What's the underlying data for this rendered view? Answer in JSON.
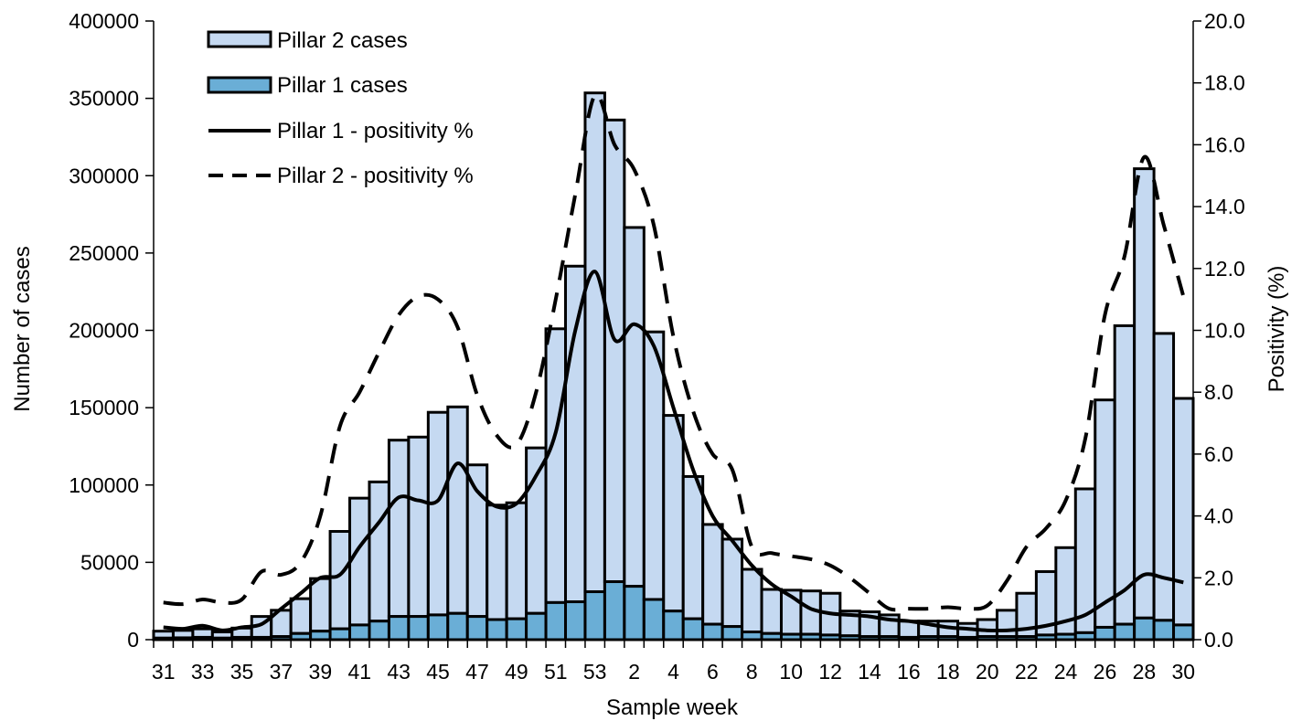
{
  "chart_data": {
    "type": "bar",
    "stacked": true,
    "title": "",
    "xlabel": "Sample week",
    "ylabel": "Number of cases",
    "y2label": "Positivity (%)",
    "ylim": [
      0,
      400000
    ],
    "y2lim": [
      0,
      20
    ],
    "yticks": [
      "0",
      "50000",
      "100000",
      "150000",
      "200000",
      "250000",
      "300000",
      "350000",
      "400000"
    ],
    "y2ticks": [
      "0.0",
      "2.0",
      "4.0",
      "6.0",
      "8.0",
      "10.0",
      "12.0",
      "14.0",
      "16.0",
      "18.0",
      "20.0"
    ],
    "legend_position": "top-left",
    "categories": [
      "31",
      "32",
      "33",
      "34",
      "35",
      "36",
      "37",
      "38",
      "39",
      "40",
      "41",
      "42",
      "43",
      "44",
      "45",
      "46",
      "47",
      "48",
      "49",
      "50",
      "51",
      "52",
      "53",
      "1",
      "2",
      "3",
      "4",
      "5",
      "6",
      "7",
      "8",
      "9",
      "10",
      "11",
      "12",
      "13",
      "14",
      "15",
      "16",
      "17",
      "18",
      "19",
      "20",
      "21",
      "22",
      "23",
      "24",
      "25",
      "26",
      "27",
      "28",
      "29",
      "30"
    ],
    "x_tick_labels": [
      "31",
      "",
      "33",
      "",
      "35",
      "",
      "37",
      "",
      "39",
      "",
      "41",
      "",
      "43",
      "",
      "45",
      "",
      "47",
      "",
      "49",
      "",
      "51",
      "",
      "53",
      "",
      "2",
      "",
      "4",
      "",
      "6",
      "",
      "8",
      "",
      "10",
      "",
      "12",
      "",
      "14",
      "",
      "16",
      "",
      "18",
      "",
      "20",
      "",
      "22",
      "",
      "24",
      "",
      "26",
      "",
      "28",
      "",
      "30"
    ],
    "series": [
      {
        "name": "Pillar 2 cases",
        "kind": "bar",
        "color": "#c5d9f1",
        "values": [
          4500,
          4800,
          5500,
          4000,
          6000,
          13500,
          17000,
          22500,
          34000,
          63000,
          82000,
          90000,
          114000,
          116000,
          131000,
          133500,
          98000,
          74000,
          75000,
          107000,
          177000,
          217000,
          322500,
          298500,
          232000,
          173000,
          126500,
          92000,
          64500,
          56500,
          40500,
          28500,
          28500,
          28000,
          27000,
          16000,
          16000,
          14000,
          10500,
          10000,
          10000,
          9000,
          11000,
          17000,
          28000,
          41000,
          56000,
          93000,
          147000,
          193000,
          290500,
          185500,
          146500
        ]
      },
      {
        "name": "Pillar 1 cases",
        "kind": "bar",
        "color": "#6aaed6",
        "values": [
          1000,
          1200,
          1500,
          1000,
          1500,
          1500,
          2000,
          4000,
          5500,
          7000,
          9500,
          12000,
          15000,
          15000,
          16000,
          17000,
          15000,
          13000,
          13500,
          17000,
          24000,
          24500,
          31000,
          37500,
          34500,
          26000,
          18500,
          13500,
          10000,
          8500,
          5000,
          4000,
          3500,
          3500,
          3000,
          2500,
          2000,
          2000,
          1500,
          2000,
          2000,
          1500,
          2000,
          2000,
          2000,
          3000,
          3500,
          4500,
          8000,
          10000,
          14000,
          12500,
          9500
        ]
      },
      {
        "name": "Pillar 1 - positivity %",
        "kind": "line",
        "axis": "right",
        "dash": "solid",
        "color": "#000000",
        "values": [
          0.4,
          0.35,
          0.45,
          0.3,
          0.4,
          0.5,
          1.0,
          1.5,
          2.0,
          2.1,
          3.0,
          3.8,
          4.6,
          4.5,
          4.5,
          5.7,
          4.8,
          4.3,
          4.4,
          5.3,
          6.7,
          10.0,
          11.9,
          9.7,
          10.2,
          9.5,
          7.5,
          5.5,
          4.0,
          3.2,
          2.4,
          1.8,
          1.4,
          1.0,
          0.85,
          0.8,
          0.75,
          0.65,
          0.6,
          0.5,
          0.4,
          0.35,
          0.3,
          0.3,
          0.35,
          0.45,
          0.6,
          0.8,
          1.2,
          1.6,
          2.1,
          2.0,
          1.85
        ]
      },
      {
        "name": "Pillar 2 - positivity %",
        "kind": "line",
        "axis": "right",
        "dash": "dashed",
        "color": "#000000",
        "values": [
          1.2,
          1.15,
          1.3,
          1.2,
          1.3,
          2.2,
          2.1,
          2.5,
          4.0,
          6.9,
          8.0,
          9.3,
          10.5,
          11.1,
          11.0,
          10.1,
          7.9,
          6.6,
          6.3,
          8.0,
          11.0,
          14.4,
          17.6,
          16.0,
          15.2,
          13.4,
          9.8,
          7.4,
          6.0,
          5.5,
          3.0,
          2.8,
          2.7,
          2.6,
          2.4,
          2.0,
          1.5,
          1.0,
          1.0,
          1.0,
          1.05,
          1.0,
          1.1,
          1.9,
          3.0,
          3.6,
          4.5,
          6.5,
          10.5,
          12.4,
          15.6,
          13.4,
          11.1
        ]
      }
    ]
  }
}
